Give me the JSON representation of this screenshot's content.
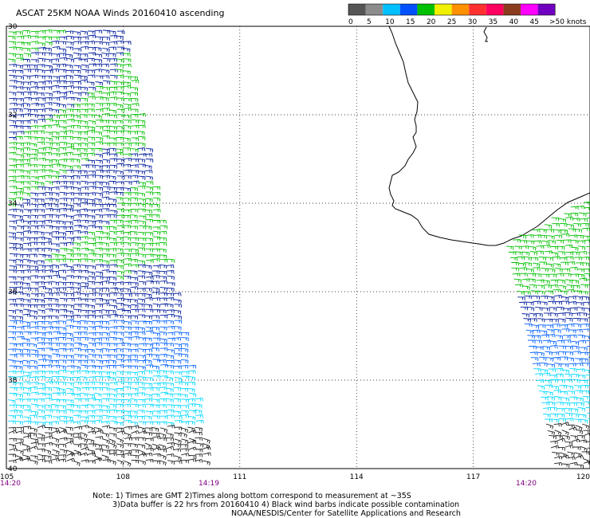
{
  "header": {
    "title": "ASCAT 25KM NOAA Winds 20160410 ascending"
  },
  "legend": {
    "unit_label": ">50 knots",
    "ticks": [
      "0",
      "5",
      "10",
      "15",
      "20",
      "25",
      "30",
      "35",
      "40",
      "45"
    ],
    "colors": [
      "#555555",
      "#8c8c8c",
      "#00c0ff",
      "#0050ff",
      "#00c000",
      "#f0f000",
      "#ff9000",
      "#ff3030",
      "#ff0060",
      "#8b3c1e",
      "#ff00ff",
      "#7000c0"
    ]
  },
  "map": {
    "lat_labels": [
      "30",
      "32",
      "34",
      "36",
      "38",
      "40"
    ],
    "lon_labels": [
      "105",
      "108",
      "111",
      "114",
      "117",
      "120"
    ],
    "time_labels": [
      "14:20",
      "14:19",
      "14:20"
    ],
    "lat_gridlines": [
      30,
      32,
      34,
      36,
      38,
      40
    ],
    "lon_gridlines": [
      105,
      108,
      111,
      114,
      117,
      120
    ],
    "time_color": "#800080",
    "barb_colors": {
      "very_light": "#222222",
      "light": "#00d8ff",
      "moderate": "#0060ff",
      "fresh": "#001c9c",
      "strong": "#00c000"
    }
  },
  "notes": {
    "line1": "Note: 1) Times are GMT 2)Times along bottom correspond to measurement at ~35S",
    "line2": "3)Data buffer is 22 hrs from 20160410 4) Black wind barbs indicate possible contamination",
    "line3": "NOAA/NESDIS/Center for Satellite Applications and Research"
  }
}
